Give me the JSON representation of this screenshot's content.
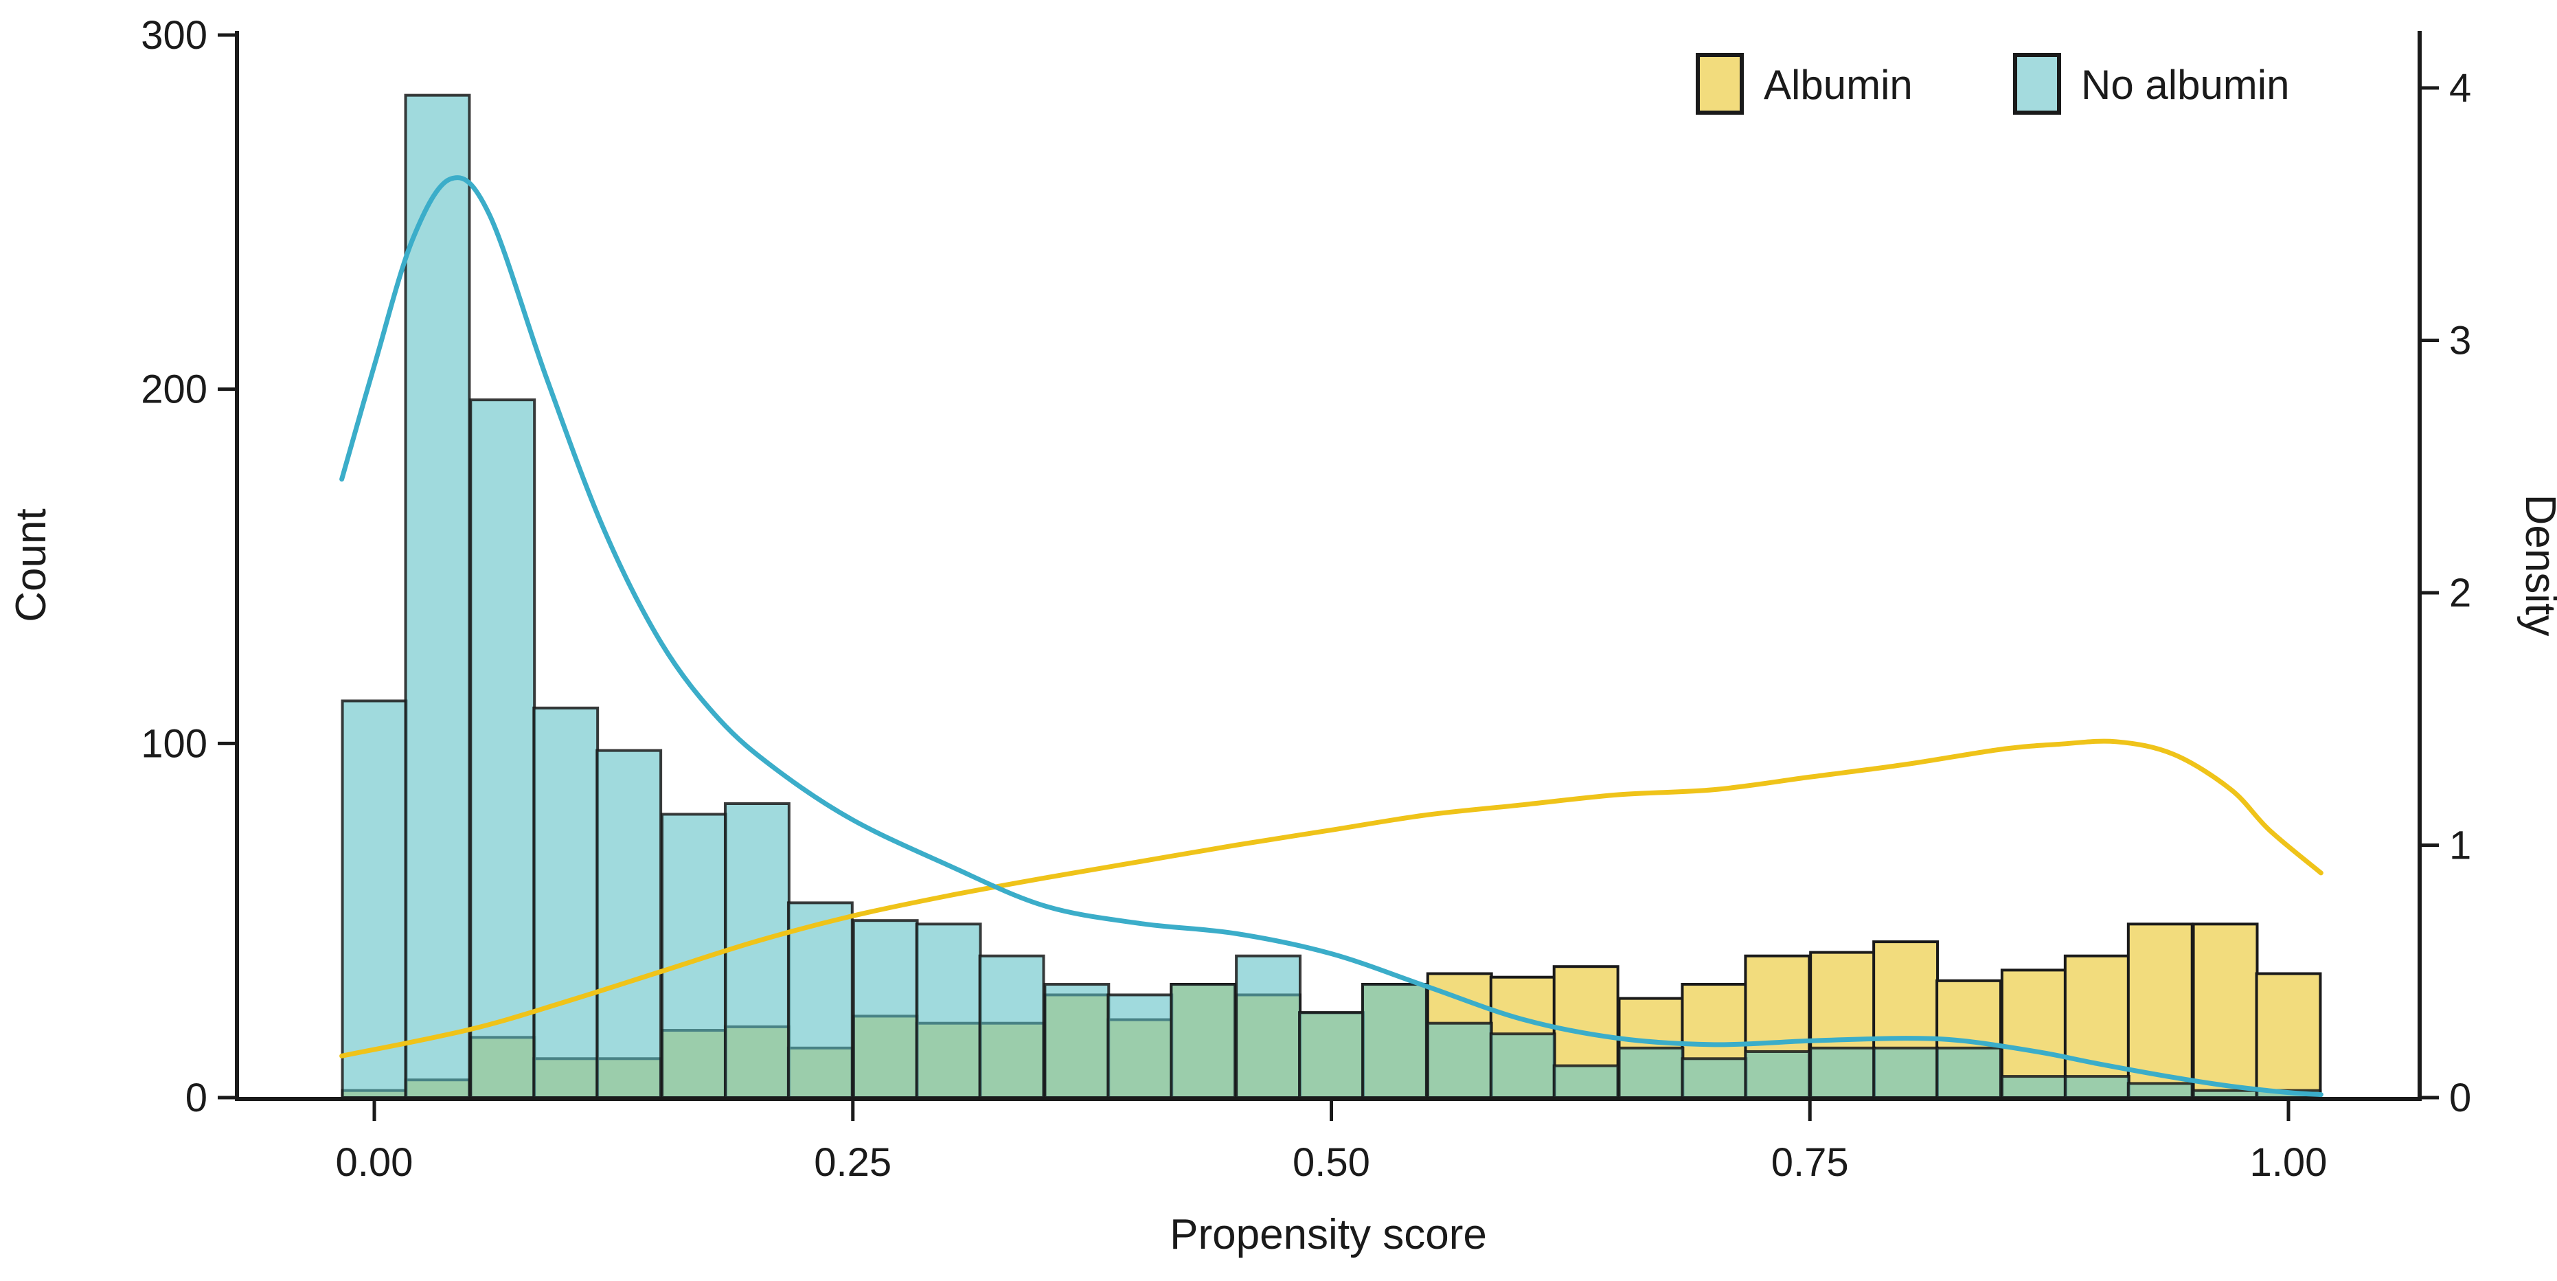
{
  "chart_data": {
    "type": "bar",
    "subtype": "overlaid-histograms-with-density-curves",
    "title": "",
    "xlabel": "Propensity score",
    "ylabel_left": "Count",
    "ylabel_right": "Density",
    "legend": {
      "position": "top-right-inside",
      "albumin_label": "Albumin",
      "no_albumin_label": "No albumin"
    },
    "xlim": [
      -0.072,
      1.068
    ],
    "ylim_left": [
      0,
      300
    ],
    "ylim_right": [
      0,
      4
    ],
    "grid": false,
    "x_ticks": [
      0.0,
      0.25,
      0.5,
      0.75,
      1.0
    ],
    "x_tick_labels": [
      "0.00",
      "0.25",
      "0.50",
      "0.75",
      "1.00"
    ],
    "y_left_ticks": [
      0,
      100,
      200,
      300
    ],
    "y_left_tick_labels": [
      "0",
      "100",
      "200",
      "300"
    ],
    "y_right_ticks": [
      0,
      1,
      2,
      3,
      4
    ],
    "y_right_tick_labels": [
      "0",
      "1",
      "2",
      "3",
      "4"
    ],
    "binwidth": 0.0333,
    "bin_centers": [
      0.0,
      0.033,
      0.067,
      0.1,
      0.133,
      0.167,
      0.2,
      0.233,
      0.267,
      0.3,
      0.333,
      0.367,
      0.4,
      0.433,
      0.467,
      0.5,
      0.533,
      0.567,
      0.6,
      0.633,
      0.667,
      0.7,
      0.733,
      0.767,
      0.8,
      0.833,
      0.867,
      0.9,
      0.933,
      0.967,
      1.0
    ],
    "series": [
      {
        "name": "Albumin (count)",
        "values": [
          2,
          5,
          17,
          11,
          11,
          19,
          20,
          14,
          23,
          21,
          21,
          29,
          22,
          32,
          29,
          24,
          32,
          35,
          34,
          37,
          28,
          32,
          40,
          41,
          44,
          33,
          36,
          40,
          49,
          49,
          35
        ]
      },
      {
        "name": "No albumin (count)",
        "values": [
          112,
          283,
          197,
          110,
          98,
          80,
          83,
          55,
          50,
          49,
          40,
          32,
          29,
          32,
          40,
          24,
          32,
          21,
          18,
          9,
          14,
          11,
          13,
          14,
          14,
          14,
          6,
          6,
          4,
          2,
          2
        ]
      }
    ],
    "density_albumin": [
      [
        -0.017,
        0.165
      ],
      [
        0.05,
        0.27
      ],
      [
        0.1,
        0.38
      ],
      [
        0.15,
        0.5
      ],
      [
        0.2,
        0.62
      ],
      [
        0.25,
        0.72
      ],
      [
        0.3,
        0.8
      ],
      [
        0.35,
        0.87
      ],
      [
        0.4,
        0.935
      ],
      [
        0.45,
        1.0
      ],
      [
        0.5,
        1.06
      ],
      [
        0.55,
        1.12
      ],
      [
        0.6,
        1.16
      ],
      [
        0.65,
        1.2
      ],
      [
        0.7,
        1.22
      ],
      [
        0.75,
        1.27
      ],
      [
        0.8,
        1.32
      ],
      [
        0.85,
        1.38
      ],
      [
        0.88,
        1.4
      ],
      [
        0.91,
        1.41
      ],
      [
        0.94,
        1.36
      ],
      [
        0.97,
        1.22
      ],
      [
        0.99,
        1.06
      ],
      [
        1.017,
        0.89
      ]
    ],
    "density_no_albumin": [
      [
        -0.017,
        2.45
      ],
      [
        0.0,
        2.9
      ],
      [
        0.02,
        3.4
      ],
      [
        0.04,
        3.64
      ],
      [
        0.06,
        3.5
      ],
      [
        0.09,
        2.85
      ],
      [
        0.12,
        2.25
      ],
      [
        0.15,
        1.8
      ],
      [
        0.18,
        1.5
      ],
      [
        0.21,
        1.3
      ],
      [
        0.25,
        1.1
      ],
      [
        0.3,
        0.92
      ],
      [
        0.35,
        0.76
      ],
      [
        0.4,
        0.69
      ],
      [
        0.45,
        0.65
      ],
      [
        0.5,
        0.57
      ],
      [
        0.55,
        0.44
      ],
      [
        0.6,
        0.31
      ],
      [
        0.65,
        0.235
      ],
      [
        0.7,
        0.21
      ],
      [
        0.75,
        0.225
      ],
      [
        0.8,
        0.235
      ],
      [
        0.83,
        0.225
      ],
      [
        0.87,
        0.18
      ],
      [
        0.9,
        0.135
      ],
      [
        0.94,
        0.08
      ],
      [
        0.97,
        0.045
      ],
      [
        1.0,
        0.02
      ],
      [
        1.017,
        0.012
      ]
    ],
    "colors": {
      "albumin_fill": "#F2DC7D",
      "albumin_line": "#EFC319",
      "no_albumin_fill_rgba": "rgba(102,195,200,0.62)",
      "no_albumin_fill_flat": "#A4DBDE",
      "no_albumin_line": "#3BADC9",
      "overlap_visible": "#9BC89F",
      "bar_stroke": "#1A1A1A",
      "axis": "#1A1A1A",
      "text": "#1A1A1A"
    }
  }
}
